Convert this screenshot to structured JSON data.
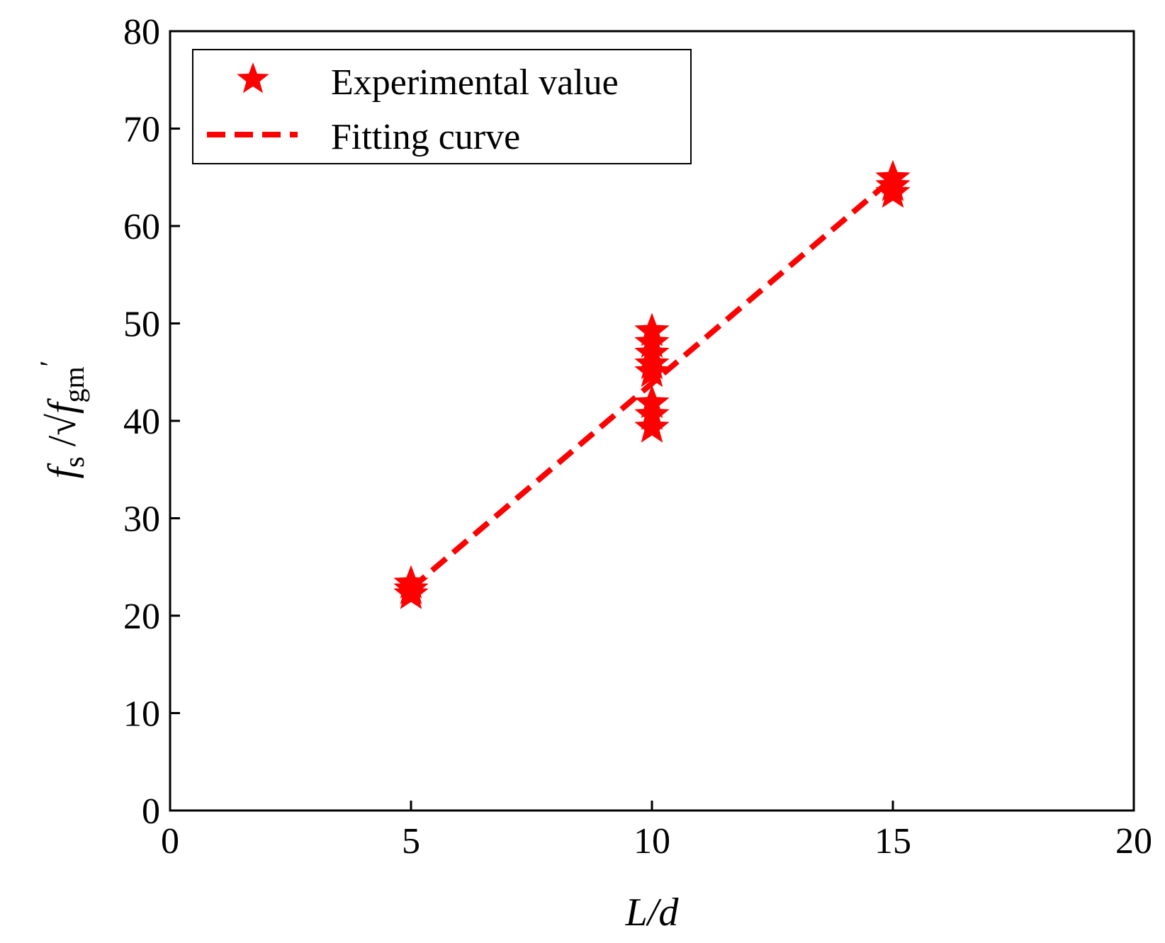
{
  "chart_data": {
    "type": "scatter",
    "title": "",
    "xlabel": "L/d",
    "ylabel": {
      "main": "f",
      "main_sub": "s",
      "sep": " /",
      "root_sym": "√",
      "root_var": "f",
      "root_sub": "gm",
      "prime": "′"
    },
    "xlim": [
      0,
      20
    ],
    "ylim": [
      0,
      80
    ],
    "x_ticks": [
      0,
      5,
      10,
      15,
      20
    ],
    "y_ticks": [
      0,
      10,
      20,
      30,
      40,
      50,
      60,
      70,
      80
    ],
    "grid": false,
    "legend_position": "top-left",
    "colors": {
      "series": "#ff0000",
      "axis": "#000000"
    },
    "series": [
      {
        "name": "Experimental value",
        "kind": "scatter",
        "marker": "star",
        "x": [
          5,
          5,
          5,
          10,
          10,
          10,
          10,
          10,
          10,
          10,
          10,
          15,
          15,
          15
        ],
        "y": [
          23.3,
          22.7,
          22.2,
          49.2,
          48.0,
          46.9,
          45.8,
          45.0,
          41.8,
          40.6,
          39.3,
          64.9,
          64.1,
          63.4
        ]
      },
      {
        "name": "Fitting curve",
        "kind": "line",
        "style": "dashed",
        "x": [
          5,
          15
        ],
        "y": [
          22.8,
          64.9
        ]
      }
    ]
  }
}
